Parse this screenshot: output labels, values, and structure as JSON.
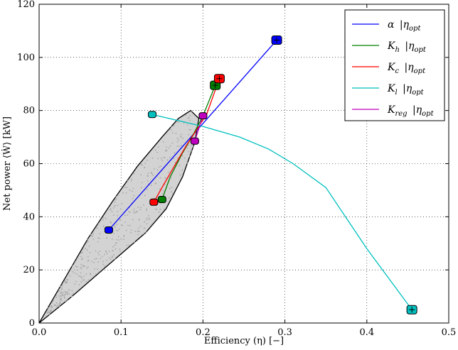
{
  "chart_data": {
    "type": "line",
    "title": "",
    "xlabel": "Efficiency  (η) [−]",
    "ylabel": "Net power ⟨Ẇ⟩ [kW]",
    "xlim": [
      0.0,
      0.5
    ],
    "ylim": [
      0,
      120
    ],
    "xticks": [
      "0.0",
      "0.1",
      "0.2",
      "0.3",
      "0.4",
      "0.5"
    ],
    "yticks": [
      "0",
      "20",
      "40",
      "60",
      "80",
      "100",
      "120"
    ],
    "xtick_values": [
      0.0,
      0.1,
      0.2,
      0.3,
      0.4,
      0.5
    ],
    "ytick_values": [
      0,
      20,
      40,
      60,
      80,
      100,
      120
    ],
    "grid": true,
    "legend_position": "top-right",
    "envelope": {
      "name": "feasible region",
      "fill": "#d3d3d3",
      "stroke": "#000000",
      "upper": [
        [
          0.0,
          0
        ],
        [
          0.03,
          16
        ],
        [
          0.06,
          32
        ],
        [
          0.09,
          46
        ],
        [
          0.12,
          59
        ],
        [
          0.15,
          70
        ],
        [
          0.17,
          77
        ],
        [
          0.185,
          80
        ],
        [
          0.195,
          77
        ]
      ],
      "lower": [
        [
          0.195,
          77
        ],
        [
          0.19,
          68
        ],
        [
          0.175,
          55
        ],
        [
          0.155,
          43
        ],
        [
          0.13,
          34
        ],
        [
          0.1,
          26
        ],
        [
          0.07,
          18
        ],
        [
          0.04,
          10
        ],
        [
          0.0,
          0
        ]
      ]
    },
    "series": [
      {
        "name": "α |η_opt",
        "label_main": "α",
        "label_sub": "|η",
        "label_subscript": "opt",
        "color": "#0000ff",
        "x": [
          0.085,
          0.29
        ],
        "y": [
          35,
          106.5
        ],
        "marker_start": [
          0.085,
          35
        ],
        "marker_end": [
          0.29,
          106.5
        ]
      },
      {
        "name": "K_h |η_opt",
        "label_main": "K",
        "label_main_sub": "h",
        "label_sub": "|η",
        "label_subscript": "opt",
        "color": "#008000",
        "x": [
          0.15,
          0.16,
          0.175,
          0.19,
          0.2,
          0.215
        ],
        "y": [
          46.5,
          55,
          64,
          72,
          78,
          89.5
        ],
        "marker_start": [
          0.15,
          46.5
        ],
        "marker_end": [
          0.215,
          89.5
        ]
      },
      {
        "name": "K_c |η_opt",
        "label_main": "K",
        "label_main_sub": "c",
        "label_sub": "|η",
        "label_subscript": "opt",
        "color": "#ff0000",
        "x": [
          0.14,
          0.15,
          0.165,
          0.18,
          0.195,
          0.205,
          0.22
        ],
        "y": [
          45.5,
          51,
          59,
          67,
          74,
          79,
          92
        ],
        "marker_start": [
          0.14,
          45.5
        ],
        "marker_end": [
          0.22,
          92
        ]
      },
      {
        "name": "K_l |η_opt",
        "label_main": "K",
        "label_main_sub": "l",
        "label_sub": "|η",
        "label_subscript": "opt",
        "color": "#00bfbf",
        "x": [
          0.138,
          0.2,
          0.245,
          0.28,
          0.31,
          0.35,
          0.4,
          0.455
        ],
        "y": [
          78.5,
          74,
          70,
          65.5,
          60,
          51,
          28,
          5
        ],
        "marker_start": [
          0.138,
          78.5
        ],
        "marker_end": [
          0.455,
          5
        ]
      },
      {
        "name": "K_reg |η_opt",
        "label_main": "K",
        "label_main_sub": "reg",
        "label_sub": "|η",
        "label_subscript": "opt",
        "color": "#bf00bf",
        "x": [
          0.19,
          0.2
        ],
        "y": [
          68.5,
          78
        ],
        "marker_start": [
          0.19,
          68.5
        ],
        "marker_end": [
          0.2,
          78
        ]
      }
    ]
  }
}
